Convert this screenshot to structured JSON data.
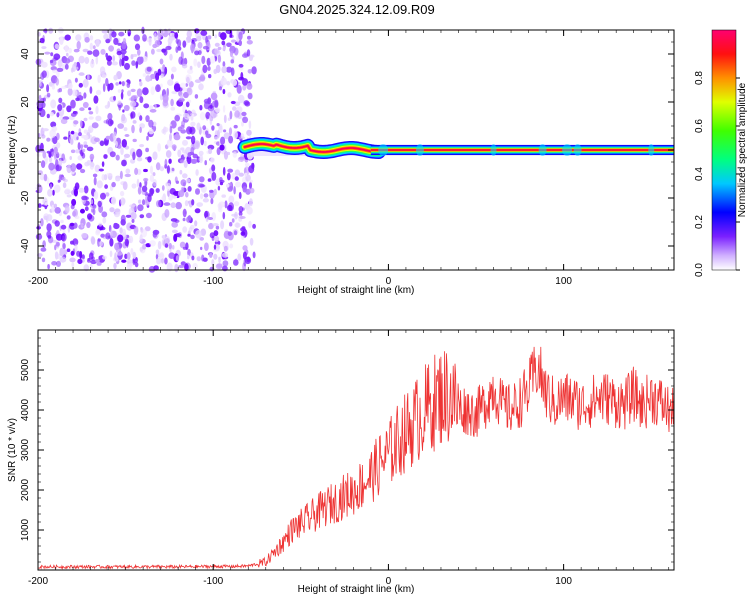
{
  "title": "GN04.2025.324.12.09.R09",
  "chart_data": [
    {
      "type": "heatmap",
      "name": "spectrogram",
      "xlabel": "Height of straight line (km)",
      "ylabel": "Frequency (Hz)",
      "xlim": [
        -200,
        163
      ],
      "ylim": [
        -50,
        50
      ],
      "xticks": [
        -200,
        -100,
        0,
        100
      ],
      "yticks": [
        -40,
        -20,
        0,
        20,
        40
      ],
      "noise_region_x": [
        -200,
        -80
      ],
      "signal_center_freq": 0,
      "colorbar": {
        "label": "Normalized spectral amplitude",
        "range": [
          0,
          1
        ],
        "ticks": [
          0.0,
          0.2,
          0.4,
          0.6,
          0.8
        ],
        "tick_labels": [
          "0.0",
          "0.2",
          "0.4",
          "0.6",
          "0.8"
        ],
        "colors": [
          "#ffffff",
          "#b86cff",
          "#6a00ff",
          "#0000ff",
          "#00ffff",
          "#00ff00",
          "#ffff00",
          "#ff8000",
          "#ff0000",
          "#ff0066"
        ]
      }
    },
    {
      "type": "line",
      "name": "snr",
      "xlabel": "Height of straight line (km)",
      "ylabel": "SNR (10 * v/v)",
      "xlim": [
        -200,
        163
      ],
      "ylim": [
        0,
        6000
      ],
      "xticks": [
        -200,
        -100,
        0,
        100
      ],
      "yticks": [
        1000,
        2000,
        3000,
        4000,
        5000
      ],
      "color": "#ee3333",
      "series": [
        {
          "name": "SNR",
          "x": [
            -200,
            -180,
            -160,
            -140,
            -120,
            -100,
            -90,
            -80,
            -75,
            -70,
            -65,
            -60,
            -55,
            -50,
            -45,
            -40,
            -35,
            -30,
            -25,
            -20,
            -15,
            -10,
            -5,
            0,
            5,
            10,
            15,
            20,
            25,
            30,
            35,
            40,
            45,
            50,
            55,
            60,
            65,
            70,
            75,
            80,
            85,
            90,
            95,
            100,
            105,
            110,
            115,
            120,
            125,
            130,
            135,
            140,
            145,
            150,
            155,
            160,
            163
          ],
          "values": [
            80,
            80,
            80,
            80,
            80,
            90,
            90,
            100,
            150,
            200,
            450,
            700,
            1000,
            1150,
            1300,
            1450,
            1600,
            1700,
            1850,
            1950,
            2150,
            2350,
            2650,
            2900,
            3200,
            3450,
            3700,
            3950,
            4150,
            4350,
            4400,
            4050,
            4000,
            3900,
            4150,
            4550,
            4100,
            4000,
            4200,
            4500,
            5100,
            4400,
            4150,
            4300,
            4250,
            4100,
            4200,
            4300,
            4300,
            4200,
            4150,
            4400,
            4100,
            4350,
            4200,
            4000,
            3900
          ]
        }
      ]
    }
  ]
}
